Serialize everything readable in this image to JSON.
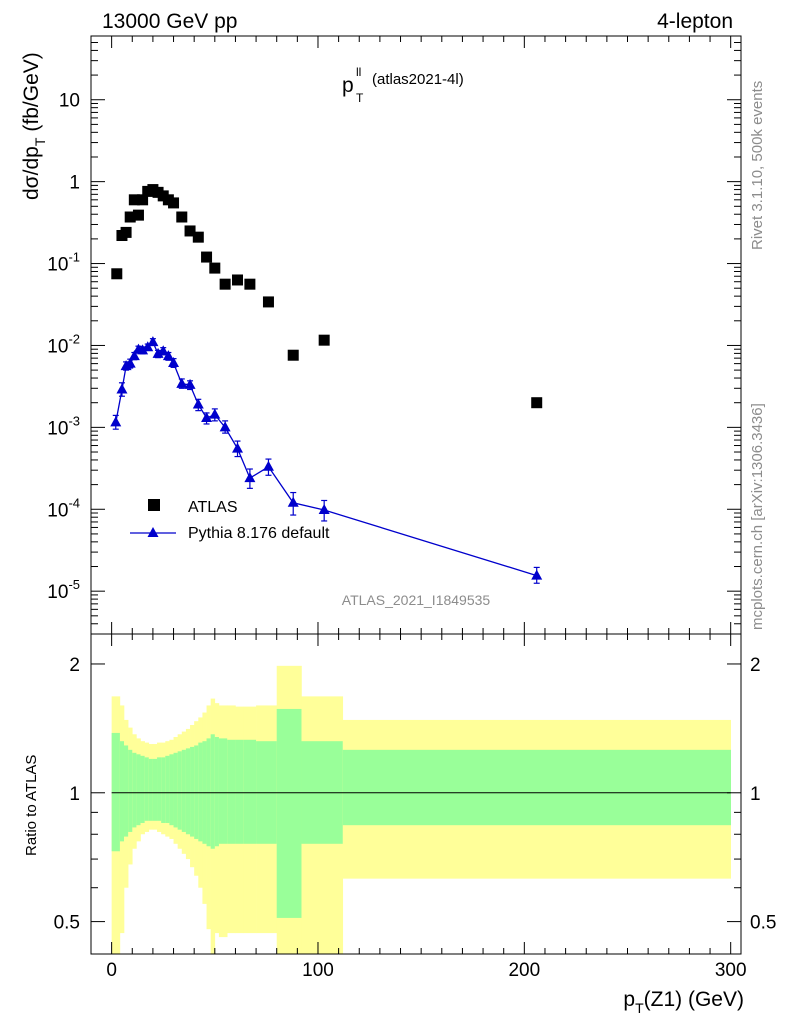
{
  "header": {
    "left": "13000 GeV pp",
    "right": "4-lepton"
  },
  "plot_title": {
    "main": "p",
    "sup": "ll",
    "sub": "T",
    "tag": "(atlas2021-4l)"
  },
  "side_labels": {
    "rivet": "Rivet 3.1.10,  500k events",
    "mcplots": "mcplots.cern.ch [arXiv:1306.3436]"
  },
  "watermark": "ATLAS_2021_I1849535",
  "y_label_main": {
    "text": "dσ/dp",
    "sub": "T",
    "units": "(fb/GeV)"
  },
  "y_label_ratio": "Ratio to ATLAS",
  "x_label": {
    "text": "p",
    "sub": "T",
    "rest": "(Z1) (GeV)"
  },
  "legend": {
    "data": "ATLAS",
    "mc": "Pythia 8.176 default"
  },
  "colors": {
    "data": "#000000",
    "mc": "#0000cc",
    "band_inner": "#99ff99",
    "band_outer": "#ffff99"
  },
  "chart_data": [
    {
      "type": "scatter",
      "panel": "main",
      "log_y": true,
      "xlim": [
        -10,
        305
      ],
      "ylim": [
        3e-06,
        60
      ],
      "x_ticks": [
        "0",
        "100",
        "200",
        "300"
      ],
      "y_ticks": [
        "10^-5",
        "10^-4",
        "10^-3",
        "10^-2",
        "10^-1",
        "1",
        "10"
      ],
      "series": [
        {
          "name": "ATLAS",
          "x": [
            2.5,
            5,
            7,
            9,
            11,
            13,
            15,
            17.5,
            20,
            22.5,
            25,
            27.5,
            30,
            34,
            38,
            42,
            46,
            50,
            55,
            61,
            67,
            76,
            88,
            103,
            206
          ],
          "y": [
            0.075,
            0.22,
            0.24,
            0.37,
            0.6,
            0.39,
            0.6,
            0.76,
            0.8,
            0.74,
            0.67,
            0.6,
            0.55,
            0.37,
            0.25,
            0.21,
            0.12,
            0.088,
            0.056,
            0.063,
            0.056,
            0.034,
            0.0076,
            0.0116,
            0.002
          ]
        },
        {
          "name": "Pythia 8.176 default",
          "x": [
            2,
            5,
            7,
            9,
            11,
            13,
            15,
            17.5,
            20,
            22.5,
            25,
            27.5,
            30,
            34,
            38,
            42,
            46,
            50,
            55,
            61,
            67,
            76,
            88,
            103,
            206
          ],
          "y": [
            0.00115,
            0.0029,
            0.0056,
            0.006,
            0.0074,
            0.0089,
            0.0087,
            0.0095,
            0.011,
            0.0079,
            0.0085,
            0.0074,
            0.0061,
            0.0034,
            0.0033,
            0.0019,
            0.0013,
            0.00143,
            0.001,
            0.00055,
            0.00024,
            0.00033,
            0.00012,
            9.8e-05,
            1.55e-05
          ],
          "err_low": [
            0.00095,
            0.0024,
            0.005,
            0.0053,
            0.0067,
            0.0081,
            0.0079,
            0.0087,
            0.01,
            0.0071,
            0.0077,
            0.0066,
            0.0054,
            0.003,
            0.0029,
            0.0016,
            0.0011,
            0.0012,
            0.00085,
            0.00044,
            0.00018,
            0.00026,
            8.5e-05,
            7.2e-05,
            1.25e-05
          ],
          "err_high": [
            0.0014,
            0.0035,
            0.0063,
            0.0068,
            0.0082,
            0.0098,
            0.0096,
            0.0104,
            0.0121,
            0.0087,
            0.0094,
            0.0082,
            0.0069,
            0.0039,
            0.0037,
            0.0022,
            0.0015,
            0.00168,
            0.0012,
            0.00068,
            0.00031,
            0.00041,
            0.00016,
            0.000128,
            1.95e-05
          ]
        }
      ]
    },
    {
      "type": "area",
      "panel": "ratio",
      "log_y": true,
      "xlim": [
        -10,
        305
      ],
      "ylim": [
        0.42,
        2.35
      ],
      "y_ticks": [
        "0.5",
        "1",
        "2"
      ],
      "reference_line": 1,
      "bins": [
        {
          "x0": 0,
          "x1": 4,
          "inner": [
            0.73,
            1.38
          ],
          "outer": [
            0.0,
            1.68
          ]
        },
        {
          "x0": 4,
          "x1": 6,
          "inner": [
            0.77,
            1.32
          ],
          "outer": [
            0.47,
            1.6
          ]
        },
        {
          "x0": 6,
          "x1": 8,
          "inner": [
            0.79,
            1.29
          ],
          "outer": [
            0.6,
            1.48
          ]
        },
        {
          "x0": 8,
          "x1": 10,
          "inner": [
            0.81,
            1.26
          ],
          "outer": [
            0.68,
            1.42
          ]
        },
        {
          "x0": 10,
          "x1": 12,
          "inner": [
            0.83,
            1.24
          ],
          "outer": [
            0.74,
            1.37
          ]
        },
        {
          "x0": 12,
          "x1": 14,
          "inner": [
            0.84,
            1.23
          ],
          "outer": [
            0.77,
            1.34
          ]
        },
        {
          "x0": 14,
          "x1": 16,
          "inner": [
            0.85,
            1.22
          ],
          "outer": [
            0.8,
            1.32
          ]
        },
        {
          "x0": 16,
          "x1": 18,
          "inner": [
            0.86,
            1.21
          ],
          "outer": [
            0.81,
            1.31
          ]
        },
        {
          "x0": 18,
          "x1": 20,
          "inner": [
            0.86,
            1.2
          ],
          "outer": [
            0.82,
            1.3
          ]
        },
        {
          "x0": 20,
          "x1": 22,
          "inner": [
            0.86,
            1.2
          ],
          "outer": [
            0.82,
            1.3
          ]
        },
        {
          "x0": 22,
          "x1": 24,
          "inner": [
            0.86,
            1.21
          ],
          "outer": [
            0.81,
            1.31
          ]
        },
        {
          "x0": 24,
          "x1": 26,
          "inner": [
            0.85,
            1.21
          ],
          "outer": [
            0.8,
            1.31
          ]
        },
        {
          "x0": 26,
          "x1": 28,
          "inner": [
            0.85,
            1.22
          ],
          "outer": [
            0.79,
            1.32
          ]
        },
        {
          "x0": 28,
          "x1": 30,
          "inner": [
            0.84,
            1.23
          ],
          "outer": [
            0.78,
            1.33
          ]
        },
        {
          "x0": 30,
          "x1": 32,
          "inner": [
            0.83,
            1.24
          ],
          "outer": [
            0.76,
            1.35
          ]
        },
        {
          "x0": 32,
          "x1": 34,
          "inner": [
            0.82,
            1.25
          ],
          "outer": [
            0.74,
            1.37
          ]
        },
        {
          "x0": 34,
          "x1": 36,
          "inner": [
            0.81,
            1.26
          ],
          "outer": [
            0.72,
            1.39
          ]
        },
        {
          "x0": 36,
          "x1": 38,
          "inner": [
            0.8,
            1.27
          ],
          "outer": [
            0.7,
            1.41
          ]
        },
        {
          "x0": 38,
          "x1": 40,
          "inner": [
            0.79,
            1.28
          ],
          "outer": [
            0.67,
            1.44
          ]
        },
        {
          "x0": 40,
          "x1": 42,
          "inner": [
            0.78,
            1.29
          ],
          "outer": [
            0.64,
            1.47
          ]
        },
        {
          "x0": 42,
          "x1": 44,
          "inner": [
            0.77,
            1.31
          ],
          "outer": [
            0.6,
            1.5
          ]
        },
        {
          "x0": 44,
          "x1": 46,
          "inner": [
            0.76,
            1.32
          ],
          "outer": [
            0.55,
            1.54
          ]
        },
        {
          "x0": 46,
          "x1": 48,
          "inner": [
            0.75,
            1.34
          ],
          "outer": [
            0.48,
            1.6
          ]
        },
        {
          "x0": 48,
          "x1": 50,
          "inner": [
            0.74,
            1.37
          ],
          "outer": [
            0.0,
            1.66
          ]
        },
        {
          "x0": 50,
          "x1": 52,
          "inner": [
            0.75,
            1.35
          ],
          "outer": [
            0.47,
            1.62
          ]
        },
        {
          "x0": 52,
          "x1": 56,
          "inner": [
            0.76,
            1.34
          ],
          "outer": [
            0.46,
            1.6
          ]
        },
        {
          "x0": 56,
          "x1": 60,
          "inner": [
            0.76,
            1.33
          ],
          "outer": [
            0.47,
            1.6
          ]
        },
        {
          "x0": 60,
          "x1": 64,
          "inner": [
            0.76,
            1.33
          ],
          "outer": [
            0.47,
            1.59
          ]
        },
        {
          "x0": 64,
          "x1": 70,
          "inner": [
            0.76,
            1.33
          ],
          "outer": [
            0.47,
            1.59
          ]
        },
        {
          "x0": 70,
          "x1": 80,
          "inner": [
            0.76,
            1.32
          ],
          "outer": [
            0.47,
            1.6
          ]
        },
        {
          "x0": 80,
          "x1": 92,
          "inner": [
            0.51,
            1.57
          ],
          "outer": [
            0.0,
            1.98
          ]
        },
        {
          "x0": 92,
          "x1": 112,
          "inner": [
            0.76,
            1.32
          ],
          "outer": [
            0.0,
            1.68
          ]
        },
        {
          "x0": 112,
          "x1": 300,
          "inner": [
            0.84,
            1.26
          ],
          "outer": [
            0.63,
            1.48
          ]
        }
      ]
    }
  ]
}
